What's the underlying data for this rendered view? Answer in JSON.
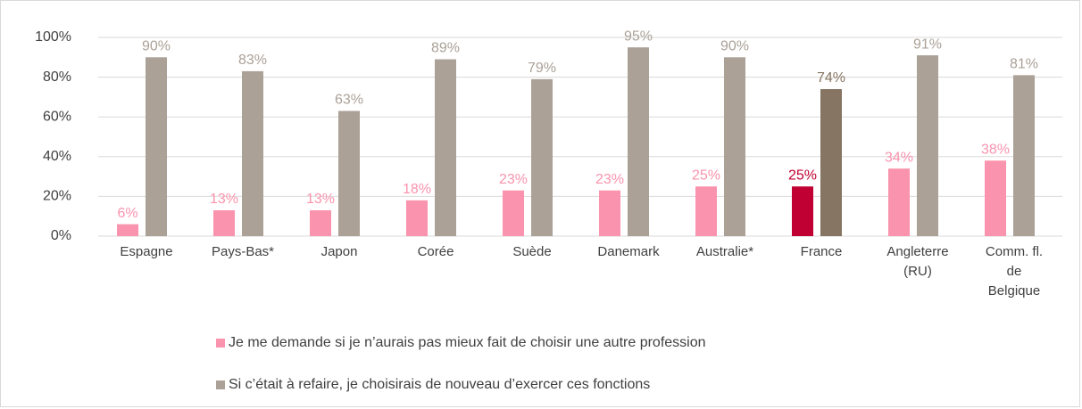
{
  "chart_data": {
    "type": "bar",
    "categories": [
      "Espagne",
      "Pays-Bas*",
      "Japon",
      "Corée",
      "Suède",
      "Danemark",
      "Australie*",
      "France",
      "Angleterre\n(RU)",
      "Comm. fl.\nde\nBelgique"
    ],
    "series": [
      {
        "name": "Je me demande si je n’aurais pas mieux fait de choisir une autre profession",
        "color": "#fa93ad",
        "colors": [
          "#fa93ad",
          "#fa93ad",
          "#fa93ad",
          "#fa93ad",
          "#fa93ad",
          "#fa93ad",
          "#fa93ad",
          "#c00032",
          "#fa93ad",
          "#fa93ad"
        ],
        "values": [
          6,
          13,
          13,
          18,
          23,
          23,
          25,
          25,
          34,
          38
        ],
        "value_labels": [
          "6%",
          "13%",
          "13%",
          "18%",
          "23%",
          "23%",
          "25%",
          "25%",
          "34%",
          "38%"
        ]
      },
      {
        "name": "Si c’était à refaire, je choisirais de nouveau d’exercer ces fonctions",
        "color": "#aba197",
        "colors": [
          "#aba197",
          "#aba197",
          "#aba197",
          "#aba197",
          "#aba197",
          "#aba197",
          "#aba197",
          "#857562",
          "#aba197",
          "#aba197"
        ],
        "values": [
          90,
          83,
          63,
          89,
          79,
          95,
          90,
          74,
          91,
          81
        ],
        "value_labels": [
          "90%",
          "83%",
          "63%",
          "89%",
          "79%",
          "95%",
          "90%",
          "74%",
          "91%",
          "81%"
        ]
      }
    ],
    "ylim": [
      0,
      100
    ],
    "yticks": [
      {
        "value": 0,
        "label": "0%"
      },
      {
        "value": 20,
        "label": "20%"
      },
      {
        "value": 40,
        "label": "40%"
      },
      {
        "value": 60,
        "label": "60%"
      },
      {
        "value": 80,
        "label": "80%"
      },
      {
        "value": 100,
        "label": "100%"
      }
    ],
    "grid": true,
    "legend": "bottom"
  }
}
